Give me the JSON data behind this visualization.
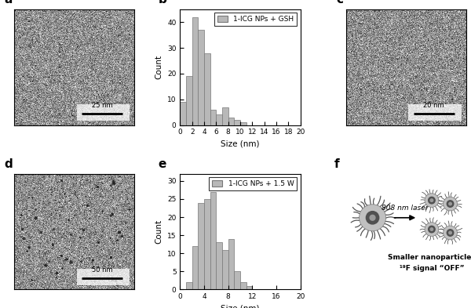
{
  "panel_labels": [
    "a",
    "b",
    "c",
    "d",
    "e",
    "f"
  ],
  "panel_label_fontsize": 11,
  "panel_label_weight": "bold",
  "hist_b_legend": "1-ICG NPs + GSH",
  "hist_b_bins": [
    0,
    1,
    2,
    3,
    4,
    5,
    6,
    7,
    8,
    9,
    10,
    11,
    12,
    13,
    14,
    15,
    16,
    17,
    18,
    19,
    20
  ],
  "hist_b_bar_heights": [
    9,
    19,
    42,
    37,
    28,
    6,
    4,
    7,
    3,
    2,
    1,
    0,
    0,
    0,
    0,
    0,
    0,
    0,
    0,
    0
  ],
  "hist_b_xlim": [
    0,
    20
  ],
  "hist_b_ylim": [
    0,
    45
  ],
  "hist_b_yticks": [
    0,
    10,
    20,
    30,
    40
  ],
  "hist_b_xticks": [
    0,
    2,
    4,
    6,
    8,
    10,
    12,
    14,
    16,
    18,
    20
  ],
  "hist_b_xlabel": "Size (nm)",
  "hist_b_ylabel": "Count",
  "hist_e_legend": "1-ICG NPs + 1.5 W",
  "hist_e_bins": [
    0,
    1,
    2,
    3,
    4,
    5,
    6,
    7,
    8,
    9,
    10,
    11,
    12,
    13,
    14,
    15,
    16,
    17,
    18,
    19,
    20
  ],
  "hist_e_bar_heights": [
    0,
    2,
    12,
    24,
    25,
    27,
    13,
    11,
    14,
    5,
    2,
    1,
    0,
    0,
    0,
    0,
    0,
    0,
    0,
    0
  ],
  "hist_e_xlim": [
    0,
    20
  ],
  "hist_e_ylim": [
    0,
    32
  ],
  "hist_e_yticks": [
    0,
    5,
    10,
    15,
    20,
    25,
    30
  ],
  "hist_e_xticks": [
    0,
    4,
    8,
    12,
    16,
    20
  ],
  "hist_e_xlabel": "Size (nm)",
  "hist_e_ylabel": "Count",
  "bar_color": "#b8b8b8",
  "bar_edgecolor": "#777777",
  "scalebar_a_text": "25 nm",
  "scalebar_c_text": "20 nm",
  "scalebar_d_text": "50 nm",
  "arrow_text": "808 nm laser",
  "bottom_text1": "Smaller nanoparticles",
  "bottom_text2": "¹⁹F signal “OFF”",
  "figure_bg": "#ffffff"
}
